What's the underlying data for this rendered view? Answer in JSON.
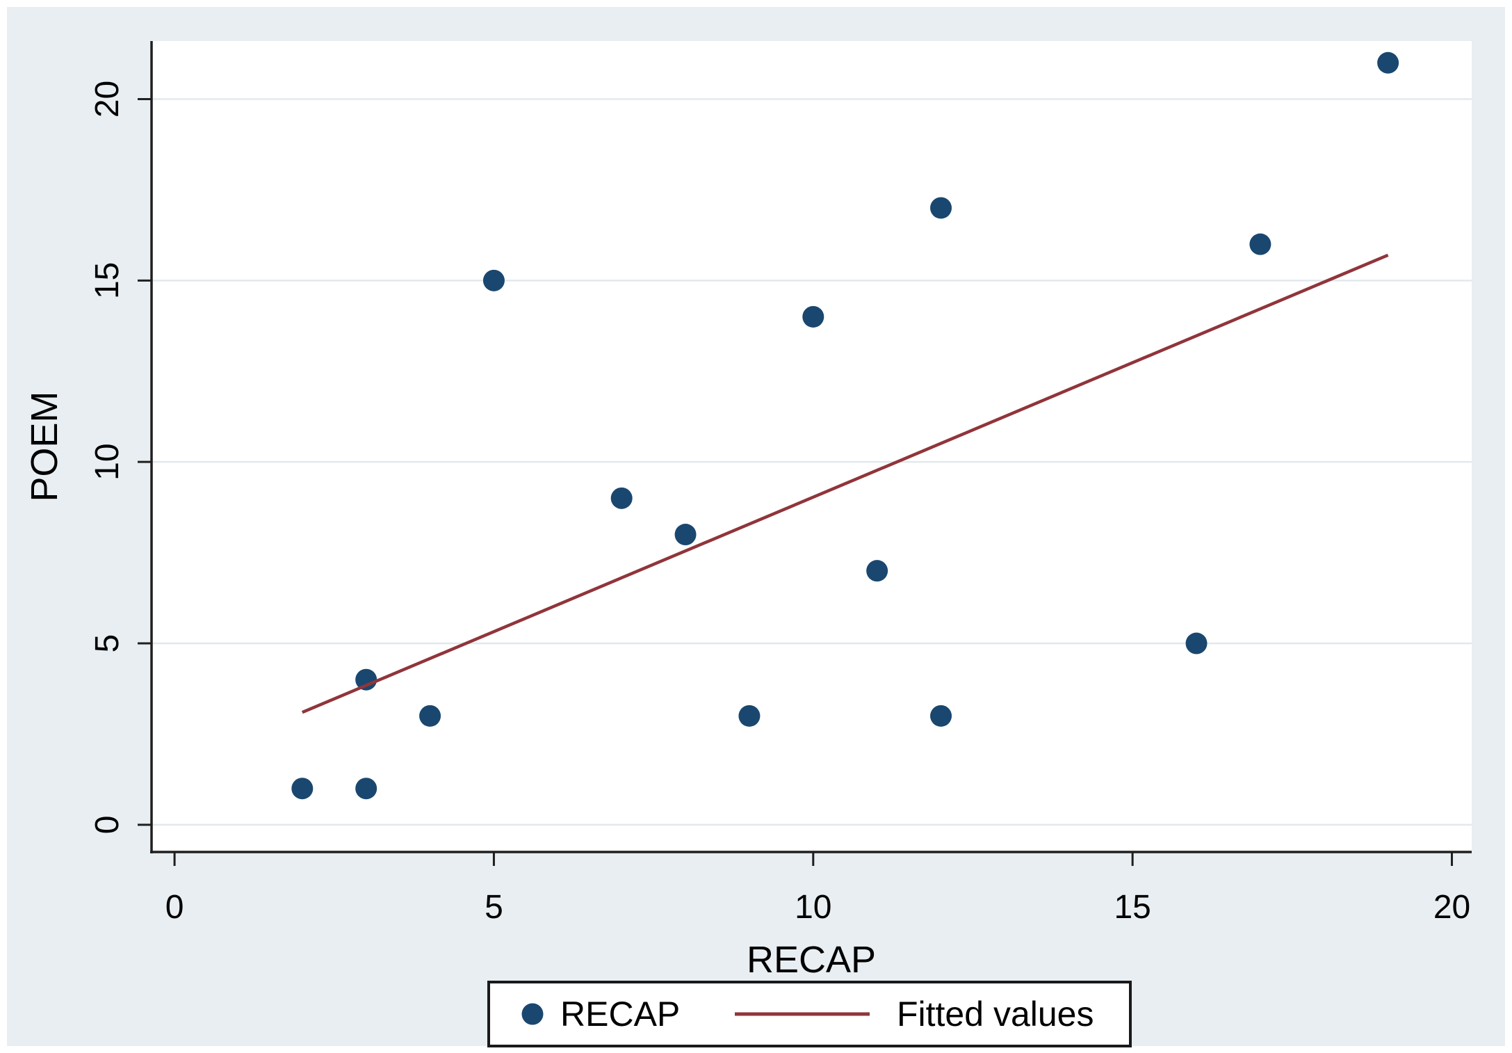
{
  "figure": {
    "background": "#e8eef2",
    "plot_background": "#ffffff",
    "grid_color": "#e2e9ee",
    "axis_color": "#1f1f1f",
    "text_color": "#000000"
  },
  "chart_data": {
    "type": "scatter",
    "title": "",
    "xlabel": "RECAP",
    "ylabel": "POEM",
    "xlim": [
      -0.36,
      20.31
    ],
    "ylim": [
      -0.75,
      21.6
    ],
    "xticks": [
      0,
      5,
      10,
      15,
      20
    ],
    "yticks": [
      0,
      5,
      10,
      15,
      20
    ],
    "grid": "horizontal",
    "point_radius": 15.5,
    "series": [
      {
        "name": "RECAP",
        "type": "scatter",
        "color": "#1a476f",
        "points": [
          [
            2,
            1
          ],
          [
            3,
            1
          ],
          [
            3,
            4
          ],
          [
            4,
            3
          ],
          [
            5,
            15
          ],
          [
            7,
            9
          ],
          [
            8,
            8
          ],
          [
            9,
            3
          ],
          [
            10,
            14
          ],
          [
            11,
            7
          ],
          [
            12,
            3
          ],
          [
            12,
            17
          ],
          [
            16,
            5
          ],
          [
            17,
            16
          ],
          [
            19,
            21
          ]
        ]
      },
      {
        "name": "Fitted values",
        "type": "line",
        "color": "#90353b",
        "points": [
          [
            2,
            3.1
          ],
          [
            19,
            15.7
          ]
        ]
      }
    ],
    "legend": {
      "position": "bottom-center",
      "items": [
        {
          "label": "RECAP",
          "marker": "dot",
          "color": "#1a476f"
        },
        {
          "label": "Fitted values",
          "marker": "line",
          "color": "#90353b"
        }
      ]
    }
  }
}
